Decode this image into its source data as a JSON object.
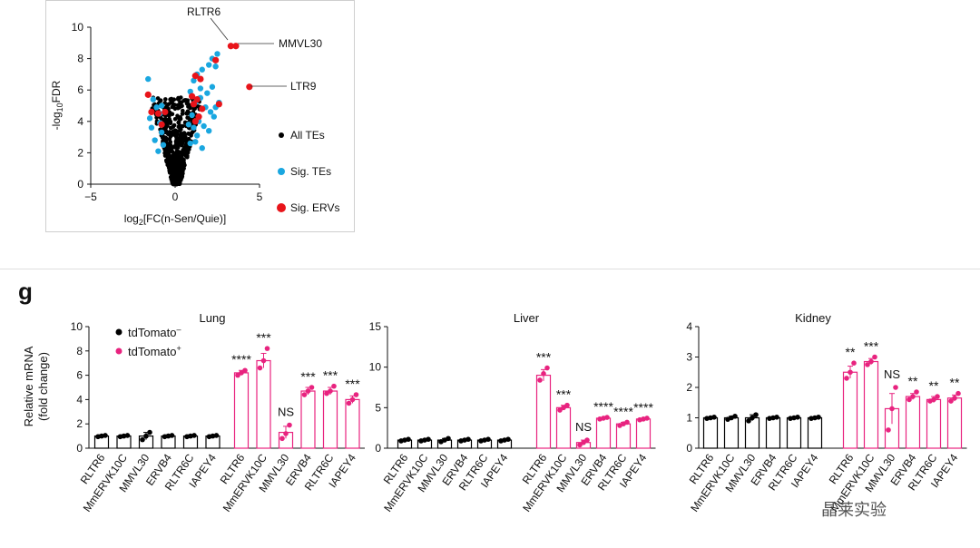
{
  "panel_letter": "g",
  "watermark": "晶莱实验",
  "colors": {
    "all_tes": "#000000",
    "sig_tes": "#1aa7e0",
    "sig_ervs": "#e8141a",
    "td_minus": "#000000",
    "td_plus": "#e8237f"
  },
  "chart_data": [
    {
      "type": "scatter",
      "title": "",
      "xlabel_main": "log",
      "xlabel_sub": "2",
      "xlabel_rest": "[FC(n-Sen/Quie)]",
      "ylabel_pre": "-log",
      "ylabel_sub": "10",
      "ylabel_post": "FDR",
      "xlim": [
        -5,
        5
      ],
      "ylim": [
        0,
        10
      ],
      "xticks": [
        -5,
        0,
        5
      ],
      "yticks": [
        0,
        2,
        4,
        6,
        8,
        10
      ],
      "legend": [
        "All TEs",
        "Sig. TEs",
        "Sig. ERVs"
      ],
      "annotations": [
        {
          "label": "RLTR6",
          "x": 3.3,
          "y": 8.8
        },
        {
          "label": "MMVL30",
          "x": 3.6,
          "y": 8.8
        },
        {
          "label": "LTR9",
          "x": 4.4,
          "y": 6.2
        }
      ],
      "sig_tes": [
        [
          -1.6,
          6.7
        ],
        [
          -1.3,
          5.4
        ],
        [
          -1.1,
          4.9
        ],
        [
          -0.9,
          4.5
        ],
        [
          -1.4,
          3.6
        ],
        [
          -0.8,
          3.3
        ],
        [
          -1.2,
          2.8
        ],
        [
          -0.7,
          2.5
        ],
        [
          -1.0,
          2.1
        ],
        [
          -0.8,
          5.0
        ],
        [
          -1.5,
          4.2
        ],
        [
          -0.9,
          3.9
        ],
        [
          0.9,
          5.9
        ],
        [
          1.1,
          6.6
        ],
        [
          1.3,
          7.0
        ],
        [
          1.6,
          7.3
        ],
        [
          2.0,
          7.6
        ],
        [
          2.2,
          8.0
        ],
        [
          2.5,
          8.3
        ],
        [
          2.4,
          7.5
        ],
        [
          1.2,
          5.2
        ],
        [
          1.5,
          5.5
        ],
        [
          1.8,
          4.9
        ],
        [
          2.1,
          4.6
        ],
        [
          2.3,
          4.3
        ],
        [
          1.4,
          4.0
        ],
        [
          1.0,
          4.4
        ],
        [
          1.7,
          3.7
        ],
        [
          2.0,
          3.4
        ],
        [
          1.3,
          3.1
        ],
        [
          0.9,
          2.6
        ],
        [
          1.6,
          2.3
        ],
        [
          1.9,
          5.8
        ],
        [
          2.2,
          6.2
        ],
        [
          1.1,
          3.6
        ],
        [
          2.6,
          5.2
        ],
        [
          1.5,
          6.1
        ],
        [
          0.8,
          3.8
        ],
        [
          1.2,
          2.7
        ],
        [
          2.4,
          4.9
        ]
      ],
      "sig_ervs": [
        [
          -1.6,
          5.7
        ],
        [
          -1.4,
          4.6
        ],
        [
          -1.0,
          4.5
        ],
        [
          -0.8,
          3.8
        ],
        [
          -0.6,
          4.6
        ],
        [
          1.2,
          6.9
        ],
        [
          1.5,
          6.7
        ],
        [
          1.3,
          5.4
        ],
        [
          1.1,
          5.1
        ],
        [
          1.6,
          4.8
        ],
        [
          1.4,
          4.3
        ],
        [
          1.2,
          4.0
        ],
        [
          2.4,
          7.9
        ],
        [
          2.6,
          5.1
        ],
        [
          1.0,
          5.6
        ],
        [
          3.3,
          8.8
        ],
        [
          3.6,
          8.8
        ],
        [
          4.4,
          6.2
        ]
      ],
      "all_te_count": 650
    },
    {
      "type": "bar",
      "title": "Lung",
      "ylabel": "Relative mRNA",
      "ylabel2": "(fold change)",
      "ylim": [
        0,
        10
      ],
      "yticks": [
        0,
        2,
        4,
        6,
        8,
        10
      ],
      "legend": [
        {
          "label": "tdTomato",
          "sup": "–"
        },
        {
          "label": "tdTomato",
          "sup": "+"
        }
      ],
      "categories": [
        "RLTR6",
        "MmERVK10C",
        "MMVL30",
        "ERVB4",
        "RLTR6C",
        "IAPEY4"
      ],
      "series": [
        {
          "name": "tdTomato–",
          "values": [
            1.0,
            1.0,
            1.0,
            1.0,
            1.0,
            1.0
          ],
          "errors": [
            0.1,
            0.1,
            0.3,
            0.1,
            0.1,
            0.1
          ],
          "points": [
            [
              0.95,
              1.0,
              1.05
            ],
            [
              0.95,
              1.0,
              1.05
            ],
            [
              0.7,
              1.0,
              1.3
            ],
            [
              0.95,
              1.0,
              1.05
            ],
            [
              0.95,
              1.0,
              1.05
            ],
            [
              0.95,
              1.0,
              1.05
            ]
          ]
        },
        {
          "name": "tdTomato+",
          "values": [
            6.2,
            7.2,
            1.3,
            4.7,
            4.7,
            4.0
          ],
          "errors": [
            0.2,
            0.6,
            0.5,
            0.3,
            0.3,
            0.3
          ],
          "points": [
            [
              6.0,
              6.2,
              6.4
            ],
            [
              6.6,
              7.2,
              8.2
            ],
            [
              0.8,
              1.2,
              1.9
            ],
            [
              4.4,
              4.7,
              5.0
            ],
            [
              4.5,
              4.7,
              5.1
            ],
            [
              3.7,
              4.0,
              4.4
            ]
          ]
        }
      ],
      "significance": [
        "****",
        "***",
        "NS",
        "***",
        "***",
        "***"
      ]
    },
    {
      "type": "bar",
      "title": "Liver",
      "ylim": [
        0,
        15
      ],
      "yticks": [
        0,
        5,
        10,
        15
      ],
      "categories": [
        "RLTR6",
        "MmERVK10C",
        "MMVL30",
        "ERVB4",
        "RLTR6C",
        "IAPEY4"
      ],
      "series": [
        {
          "name": "tdTomato–",
          "values": [
            1.0,
            1.0,
            1.0,
            1.0,
            1.0,
            1.0
          ],
          "errors": [
            0.1,
            0.1,
            0.2,
            0.1,
            0.1,
            0.1
          ],
          "points": [
            [
              0.9,
              1.0,
              1.1
            ],
            [
              0.9,
              1.0,
              1.1
            ],
            [
              0.8,
              1.0,
              1.2
            ],
            [
              0.9,
              1.0,
              1.1
            ],
            [
              0.9,
              1.0,
              1.1
            ],
            [
              0.9,
              1.0,
              1.1
            ]
          ]
        },
        {
          "name": "tdTomato+",
          "values": [
            9.0,
            5.0,
            0.7,
            3.7,
            3.0,
            3.6
          ],
          "errors": [
            0.7,
            0.3,
            0.3,
            0.1,
            0.2,
            0.1
          ],
          "points": [
            [
              8.4,
              9.2,
              9.9
            ],
            [
              4.7,
              5.0,
              5.3
            ],
            [
              0.4,
              0.7,
              1.0
            ],
            [
              3.6,
              3.7,
              3.8
            ],
            [
              2.8,
              3.0,
              3.2
            ],
            [
              3.5,
              3.6,
              3.7
            ]
          ]
        }
      ],
      "significance": [
        "***",
        "***",
        "NS",
        "****",
        "****",
        "****"
      ]
    },
    {
      "type": "bar",
      "title": "Kidney",
      "ylim": [
        0,
        4
      ],
      "yticks": [
        0,
        1,
        2,
        3,
        4
      ],
      "categories": [
        "RLTR6",
        "MmERVK10C",
        "MMVL30",
        "ERVB4",
        "RLTR6C",
        "IAPEY4"
      ],
      "series": [
        {
          "name": "tdTomato–",
          "values": [
            1.0,
            1.0,
            1.0,
            1.0,
            1.0,
            1.0
          ],
          "errors": [
            0.03,
            0.05,
            0.1,
            0.03,
            0.03,
            0.03
          ],
          "points": [
            [
              0.98,
              1.0,
              1.02
            ],
            [
              0.95,
              1.0,
              1.05
            ],
            [
              0.9,
              1.0,
              1.1
            ],
            [
              0.98,
              1.0,
              1.02
            ],
            [
              0.98,
              1.0,
              1.02
            ],
            [
              0.98,
              1.0,
              1.02
            ]
          ]
        },
        {
          "name": "tdTomato+",
          "values": [
            2.5,
            2.85,
            1.3,
            1.7,
            1.6,
            1.65
          ],
          "errors": [
            0.2,
            0.1,
            0.5,
            0.1,
            0.1,
            0.1
          ],
          "points": [
            [
              2.3,
              2.5,
              2.8
            ],
            [
              2.75,
              2.85,
              3.0
            ],
            [
              0.6,
              1.3,
              2.0
            ],
            [
              1.6,
              1.7,
              1.85
            ],
            [
              1.55,
              1.6,
              1.7
            ],
            [
              1.55,
              1.65,
              1.8
            ]
          ]
        }
      ],
      "significance": [
        "**",
        "***",
        "NS",
        "**",
        "**",
        "**"
      ]
    }
  ]
}
